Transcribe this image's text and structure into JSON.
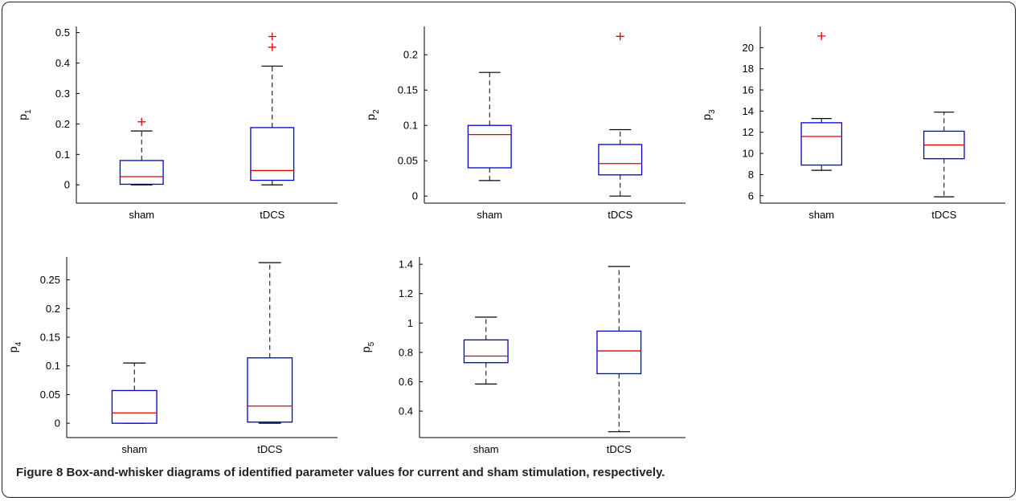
{
  "caption": {
    "label": "Figure 8",
    "text": "Box-and-whisker diagrams of identified parameter values for current and sham stimulation, respectively."
  },
  "colors": {
    "box": "#0000cc",
    "median": "#e00000",
    "outlier": "#e00000",
    "whisker": "#000000"
  },
  "chart_data": [
    {
      "type": "box",
      "id": "p1",
      "ylabel": "p",
      "ylabel_sub": "1",
      "categories": [
        "sham",
        "tDCS"
      ],
      "ylim": [
        -0.06,
        0.52
      ],
      "yticks": [
        0,
        0.1,
        0.2,
        0.3,
        0.4,
        0.5
      ],
      "yticklabels": [
        "0",
        "0.1",
        "0.2",
        "0.3",
        "0.4",
        "0.5"
      ],
      "boxes": [
        {
          "min": 0.0,
          "q1": 0.002,
          "median": 0.027,
          "q3": 0.08,
          "max": 0.177,
          "outliers": [
            0.207
          ]
        },
        {
          "min": 0.0,
          "q1": 0.015,
          "median": 0.047,
          "q3": 0.188,
          "max": 0.39,
          "outliers": [
            0.452,
            0.487
          ]
        }
      ]
    },
    {
      "type": "box",
      "id": "p2",
      "ylabel": "p",
      "ylabel_sub": "2",
      "categories": [
        "sham",
        "tDCS"
      ],
      "ylim": [
        -0.01,
        0.24
      ],
      "yticks": [
        0,
        0.05,
        0.1,
        0.15,
        0.2
      ],
      "yticklabels": [
        "0",
        "0.05",
        "0.1",
        "0.15",
        "0.2"
      ],
      "boxes": [
        {
          "min": 0.022,
          "q1": 0.04,
          "median": 0.087,
          "q3": 0.1,
          "max": 0.175,
          "outliers": []
        },
        {
          "min": 0.0,
          "q1": 0.03,
          "median": 0.046,
          "q3": 0.073,
          "max": 0.094,
          "outliers": [
            0.226
          ]
        }
      ]
    },
    {
      "type": "box",
      "id": "p3",
      "ylabel": "p",
      "ylabel_sub": "3",
      "categories": [
        "sham",
        "tDCS"
      ],
      "ylim": [
        5.3,
        22
      ],
      "yticks": [
        6,
        8,
        10,
        12,
        14,
        16,
        18,
        20
      ],
      "yticklabels": [
        "6",
        "8",
        "10",
        "12",
        "14",
        "16",
        "18",
        "20"
      ],
      "boxes": [
        {
          "min": 8.4,
          "q1": 8.9,
          "median": 11.6,
          "q3": 12.9,
          "max": 13.3,
          "outliers": [
            21.1
          ]
        },
        {
          "min": 5.9,
          "q1": 9.5,
          "median": 10.8,
          "q3": 12.1,
          "max": 13.9,
          "outliers": []
        }
      ]
    },
    {
      "type": "box",
      "id": "p4",
      "ylabel": "p",
      "ylabel_sub": "4",
      "categories": [
        "sham",
        "tDCS"
      ],
      "ylim": [
        -0.025,
        0.29
      ],
      "yticks": [
        0,
        0.05,
        0.1,
        0.15,
        0.2,
        0.25
      ],
      "yticklabels": [
        "0",
        "0.05",
        "0.1",
        "0.15",
        "0.2",
        "0.25"
      ],
      "boxes": [
        {
          "min": 0.0,
          "q1": 0.0,
          "median": 0.018,
          "q3": 0.057,
          "max": 0.105,
          "outliers": []
        },
        {
          "min": 0.0,
          "q1": 0.002,
          "median": 0.03,
          "q3": 0.114,
          "max": 0.28,
          "outliers": []
        }
      ]
    },
    {
      "type": "box",
      "id": "p5",
      "ylabel": "p",
      "ylabel_sub": "5",
      "categories": [
        "sham",
        "tDCS"
      ],
      "ylim": [
        0.22,
        1.45
      ],
      "yticks": [
        0.4,
        0.6,
        0.8,
        1.0,
        1.2,
        1.4
      ],
      "yticklabels": [
        "0.4",
        "0.6",
        "0.8",
        "1",
        "1.2",
        "1.4"
      ],
      "boxes": [
        {
          "min": 0.585,
          "q1": 0.73,
          "median": 0.775,
          "q3": 0.885,
          "max": 1.04,
          "outliers": []
        },
        {
          "min": 0.26,
          "q1": 0.655,
          "median": 0.81,
          "q3": 0.945,
          "max": 1.385,
          "outliers": []
        }
      ]
    }
  ]
}
